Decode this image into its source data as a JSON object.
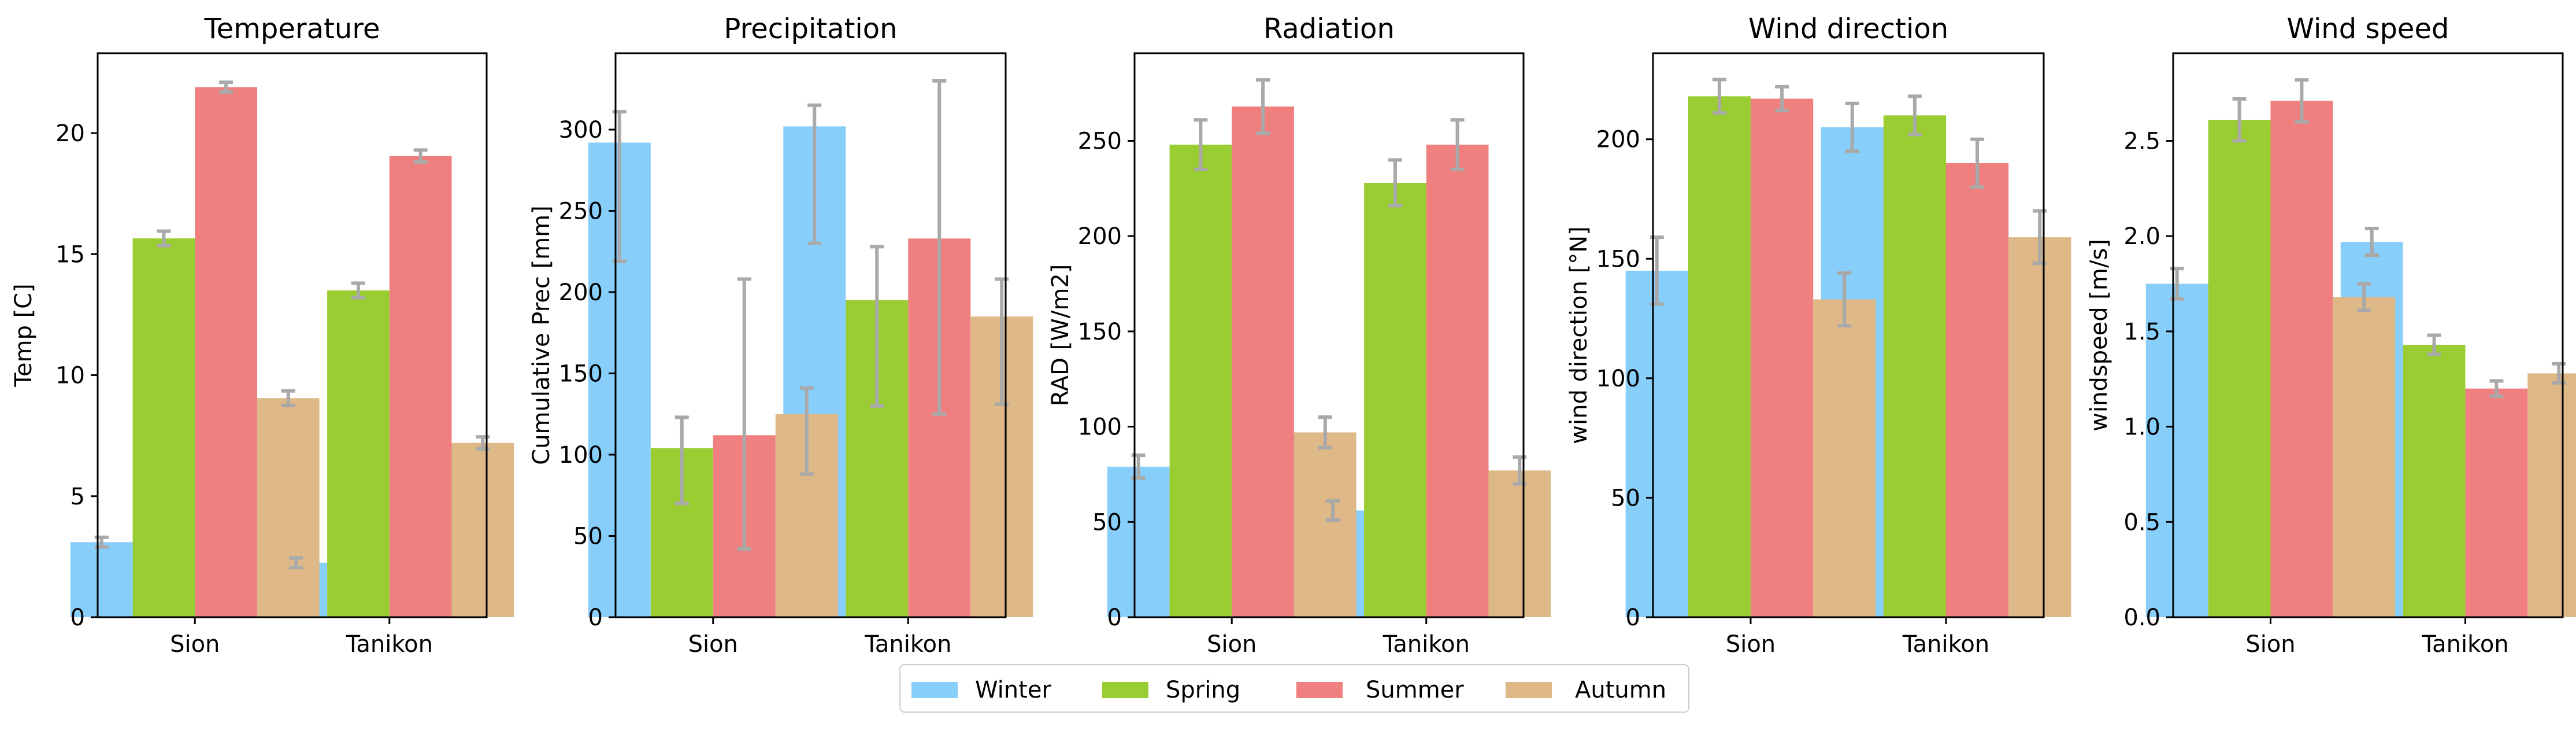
{
  "chart_data": [
    {
      "type": "bar",
      "title": "Temperature",
      "xlabel": "",
      "ylabel": "Temp [C]",
      "categories": [
        "Sion",
        "Tanikon"
      ],
      "ylim": [
        0,
        23.3
      ],
      "yticks": [
        0,
        5,
        10,
        15,
        20
      ],
      "ytick_labels": [
        "0",
        "5",
        "10",
        "15",
        "20"
      ],
      "series": [
        {
          "name": "Winter",
          "values": [
            3.1,
            2.25
          ],
          "errors": [
            0.2,
            0.2
          ]
        },
        {
          "name": "Spring",
          "values": [
            15.65,
            13.5
          ],
          "errors": [
            0.3,
            0.3
          ]
        },
        {
          "name": "Summer",
          "values": [
            21.9,
            19.05
          ],
          "errors": [
            0.2,
            0.25
          ]
        },
        {
          "name": "Autumn",
          "values": [
            9.05,
            7.2
          ],
          "errors": [
            0.3,
            0.25
          ]
        }
      ]
    },
    {
      "type": "bar",
      "title": "Precipitation",
      "xlabel": "",
      "ylabel": "Cumulative Prec [mm]",
      "categories": [
        "Sion",
        "Tanikon"
      ],
      "ylim": [
        0,
        347
      ],
      "yticks": [
        0,
        50,
        100,
        150,
        200,
        250,
        300
      ],
      "ytick_labels": [
        "0",
        "50",
        "100",
        "150",
        "200",
        "250",
        "300"
      ],
      "series": [
        {
          "name": "Winter",
          "values": [
            292,
            302
          ],
          "errors": [
            [
              73,
              19
            ],
            [
              72,
              13
            ]
          ]
        },
        {
          "name": "Spring",
          "values": [
            104,
            195
          ],
          "errors": [
            [
              34,
              19
            ],
            [
              65,
              33
            ]
          ]
        },
        {
          "name": "Summer",
          "values": [
            112,
            233
          ],
          "errors": [
            [
              70,
              96
            ],
            [
              108,
              97
            ]
          ]
        },
        {
          "name": "Autumn",
          "values": [
            125,
            185
          ],
          "errors": [
            [
              37,
              16
            ],
            [
              54,
              23
            ]
          ]
        }
      ]
    },
    {
      "type": "bar",
      "title": "Radiation",
      "xlabel": "",
      "ylabel": "RAD [W/m2]",
      "categories": [
        "Sion",
        "Tanikon"
      ],
      "ylim": [
        0,
        296
      ],
      "yticks": [
        0,
        50,
        100,
        150,
        200,
        250
      ],
      "ytick_labels": [
        "0",
        "50",
        "100",
        "150",
        "200",
        "250"
      ],
      "series": [
        {
          "name": "Winter",
          "values": [
            79,
            56
          ],
          "errors": [
            6,
            5
          ]
        },
        {
          "name": "Spring",
          "values": [
            248,
            228
          ],
          "errors": [
            13,
            12
          ]
        },
        {
          "name": "Summer",
          "values": [
            268,
            248
          ],
          "errors": [
            14,
            13
          ]
        },
        {
          "name": "Autumn",
          "values": [
            97,
            77
          ],
          "errors": [
            8,
            7
          ]
        }
      ]
    },
    {
      "type": "bar",
      "title": "Wind direction",
      "xlabel": "",
      "ylabel": "wind direction [°N]",
      "categories": [
        "Sion",
        "Tanikon"
      ],
      "ylim": [
        0,
        236
      ],
      "yticks": [
        0,
        50,
        100,
        150,
        200
      ],
      "ytick_labels": [
        "0",
        "50",
        "100",
        "150",
        "200"
      ],
      "series": [
        {
          "name": "Winter",
          "values": [
            145,
            205
          ],
          "errors": [
            14,
            10
          ]
        },
        {
          "name": "Spring",
          "values": [
            218,
            210
          ],
          "errors": [
            7,
            8
          ]
        },
        {
          "name": "Summer",
          "values": [
            217,
            190
          ],
          "errors": [
            5,
            10
          ]
        },
        {
          "name": "Autumn",
          "values": [
            133,
            159
          ],
          "errors": [
            11,
            11
          ]
        }
      ]
    },
    {
      "type": "bar",
      "title": "Wind speed",
      "xlabel": "",
      "ylabel": "windspeed [m/s]",
      "categories": [
        "Sion",
        "Tanikon"
      ],
      "ylim": [
        0,
        2.96
      ],
      "yticks": [
        0,
        0.5,
        1.0,
        1.5,
        2.0,
        2.5
      ],
      "ytick_labels": [
        "0.0",
        "0.5",
        "1.0",
        "1.5",
        "2.0",
        "2.5"
      ],
      "series": [
        {
          "name": "Winter",
          "values": [
            1.75,
            1.97
          ],
          "errors": [
            0.08,
            0.07
          ]
        },
        {
          "name": "Spring",
          "values": [
            2.61,
            1.43
          ],
          "errors": [
            0.11,
            0.05
          ]
        },
        {
          "name": "Summer",
          "values": [
            2.71,
            1.2
          ],
          "errors": [
            0.11,
            0.04
          ]
        },
        {
          "name": "Autumn",
          "values": [
            1.68,
            1.28
          ],
          "errors": [
            0.07,
            0.05
          ]
        }
      ]
    }
  ],
  "legend": {
    "placement": "bottom-center",
    "entries": [
      {
        "label": "Winter",
        "color": "#87CEFA"
      },
      {
        "label": "Spring",
        "color": "#9ACD32"
      },
      {
        "label": "Summer",
        "color": "#F08080"
      },
      {
        "label": "Autumn",
        "color": "#DEB887"
      }
    ]
  },
  "colors": {
    "error_bar": "#A9A9A9",
    "axis": "#000000"
  }
}
